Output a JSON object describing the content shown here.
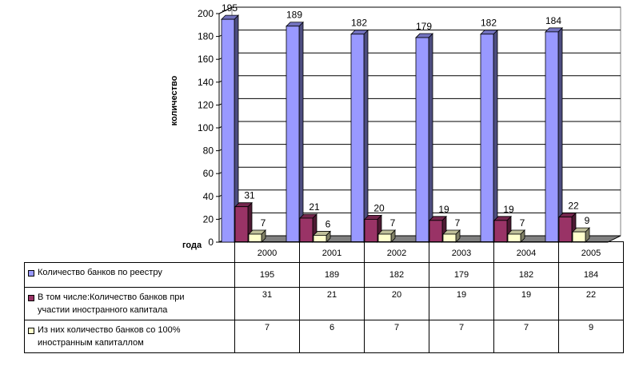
{
  "chart_data": {
    "type": "bar",
    "categories": [
      "2000",
      "2001",
      "2002",
      "2003",
      "2004",
      "2005"
    ],
    "series": [
      {
        "name": "Количество банков по реестру",
        "values": [
          195,
          189,
          182,
          179,
          182,
          184
        ],
        "color": "#9999FF"
      },
      {
        "name": "В том числе:Количество банков при участии иностранного капитала",
        "values": [
          31,
          21,
          20,
          19,
          19,
          22
        ],
        "color": "#993366"
      },
      {
        "name": "Из них количество банков со 100% иностранным капиталлом",
        "values": [
          7,
          6,
          7,
          7,
          7,
          9
        ],
        "color": "#FFFFCC"
      }
    ],
    "series_labels": [
      [
        "Количество банков по реестру"
      ],
      [
        "В том числе:Количество банков при",
        "участии иностранного капитала"
      ],
      [
        "Из них количество банков со 100%",
        "иностранным капиталлом"
      ]
    ],
    "xlabel": "года",
    "ylabel": "количество",
    "ylim": [
      0,
      200
    ],
    "yticks": [
      0,
      20,
      40,
      60,
      80,
      100,
      120,
      140,
      160,
      180,
      200
    ],
    "grid": true,
    "legend": "data table below chart",
    "bar_style": "3d",
    "floor_color": "#808080"
  }
}
